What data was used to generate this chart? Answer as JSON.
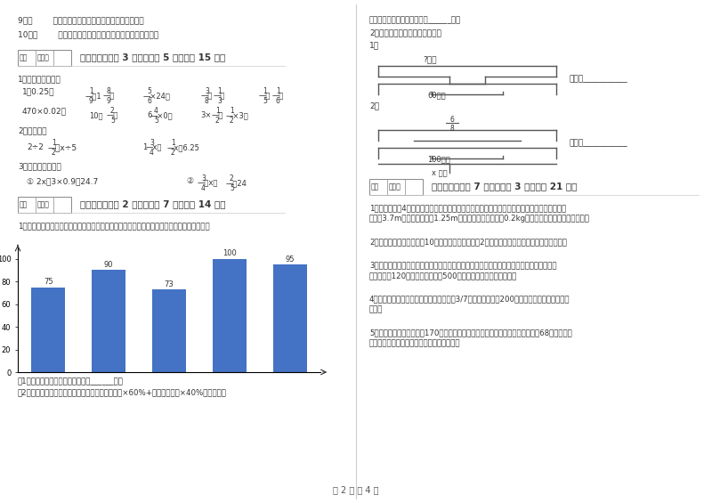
{
  "page_bg": "#ffffff",
  "text_color": "#333333",
  "bar_color": "#4472c4",
  "bar_values": [
    75,
    90,
    73,
    100,
    95
  ],
  "bar_ylim": [
    0,
    110
  ],
  "bar_yticks": [
    0,
    20,
    40,
    60,
    80,
    100
  ],
  "footer_text": "第 2 页 共 4 页"
}
